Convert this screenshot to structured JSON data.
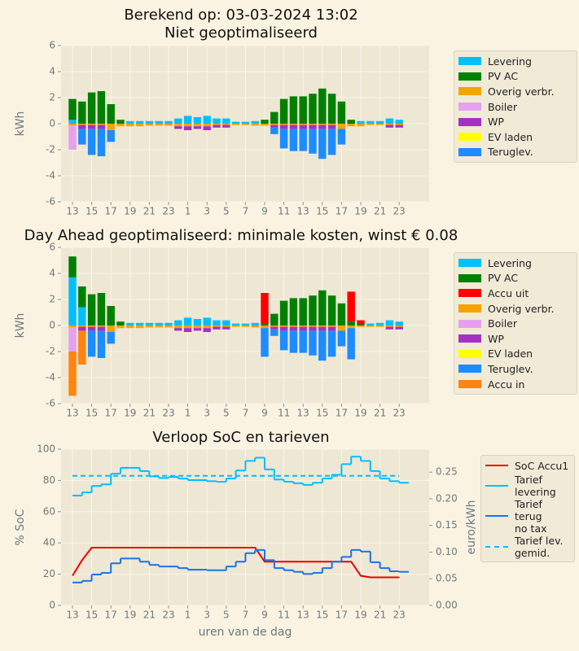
{
  "chart_data": [
    {
      "type": "bar",
      "stacked": true,
      "title": "Berekend op: 03-03-2024 13:02\nNiet geoptimaliseerd",
      "ylabel": "kWh",
      "categories": [
        "13",
        null,
        "15",
        null,
        "17",
        null,
        "19",
        null,
        "21",
        null,
        "23",
        null,
        "1",
        null,
        "3",
        null,
        "5",
        null,
        "7",
        null,
        "9",
        null,
        "11",
        null,
        "13",
        null,
        "15",
        null,
        "17",
        null,
        "19",
        null,
        "21",
        null,
        "23"
      ],
      "series": [
        {
          "name": "Levering",
          "color": "#00bfff",
          "values": [
            0.3,
            0,
            0,
            0,
            0,
            0,
            0.2,
            0.2,
            0.2,
            0.2,
            0.2,
            0.4,
            0.6,
            0.5,
            0.6,
            0.4,
            0.4,
            0.15,
            0.15,
            0.2,
            0,
            0,
            0,
            0,
            0,
            0,
            0,
            0,
            0,
            0,
            0.2,
            0.2,
            0.2,
            0.4,
            0.3
          ]
        },
        {
          "name": "PV AC",
          "color": "#008000",
          "values": [
            1.6,
            1.7,
            2.4,
            2.5,
            1.5,
            0.3,
            0,
            0,
            0,
            0,
            0,
            0,
            0,
            0,
            0,
            0,
            0,
            0,
            0,
            0,
            0.3,
            0.9,
            1.9,
            2.1,
            2.1,
            2.3,
            2.7,
            2.3,
            1.7,
            0.3,
            0,
            0,
            0,
            0,
            0
          ]
        },
        {
          "name": "Overig verbr.",
          "color": "#f5a300",
          "values": [
            -0.15,
            -0.1,
            -0.1,
            -0.1,
            -0.5,
            -0.2,
            -0.2,
            -0.2,
            -0.15,
            -0.15,
            -0.15,
            -0.2,
            -0.2,
            -0.2,
            -0.2,
            -0.1,
            -0.1,
            -0.1,
            -0.1,
            -0.15,
            -0.15,
            -0.1,
            -0.1,
            -0.1,
            -0.1,
            -0.1,
            -0.1,
            -0.1,
            -0.4,
            -0.2,
            -0.2,
            -0.1,
            -0.1,
            -0.1,
            -0.1
          ]
        },
        {
          "name": "Boiler",
          "color": "#e6a1ee",
          "values": [
            -1.85,
            0,
            0,
            0,
            0,
            0,
            0,
            0,
            0,
            0,
            0,
            0,
            0,
            0,
            0,
            0,
            0,
            0,
            0,
            0,
            0,
            0,
            0,
            0,
            0,
            0,
            0,
            0,
            0,
            0,
            0,
            0,
            0,
            0,
            0
          ]
        },
        {
          "name": "WP",
          "color": "#a431c4",
          "values": [
            0,
            -0.3,
            -0.3,
            -0.3,
            0,
            0,
            0,
            0,
            0,
            0,
            0,
            -0.2,
            -0.3,
            -0.2,
            -0.3,
            -0.2,
            -0.2,
            0,
            0,
            0,
            0,
            -0.2,
            -0.3,
            -0.3,
            -0.3,
            -0.3,
            -0.3,
            -0.3,
            0,
            0,
            0,
            0,
            0,
            -0.2,
            -0.2
          ]
        },
        {
          "name": "EV laden",
          "color": "#ffff00",
          "values": [
            0,
            0,
            0,
            0,
            0,
            0,
            0,
            0,
            0,
            0,
            0,
            0,
            0,
            0,
            0,
            0,
            0,
            0,
            0,
            0,
            0,
            0,
            0,
            0,
            0,
            0,
            0,
            0,
            0,
            0,
            0,
            0,
            0,
            0,
            0
          ]
        },
        {
          "name": "Teruglev.",
          "color": "#1e8cff",
          "values": [
            0,
            -1.2,
            -2.0,
            -2.1,
            -0.9,
            0,
            0,
            0,
            0,
            0,
            0,
            0,
            0,
            0,
            0,
            0,
            0,
            0,
            0,
            0,
            0,
            -0.5,
            -1.5,
            -1.7,
            -1.7,
            -1.9,
            -2.3,
            -2.0,
            -1.2,
            0,
            0,
            0,
            0,
            0,
            0
          ]
        }
      ],
      "ylim": [
        -6,
        6
      ],
      "yticks": [
        -6,
        -4,
        -2,
        0,
        2,
        4,
        6
      ],
      "grid": true,
      "legend": "right"
    },
    {
      "type": "bar",
      "stacked": true,
      "title": "Day Ahead geoptimaliseerd: minimale kosten, winst € 0.08",
      "ylabel": "kWh",
      "categories": [
        "13",
        null,
        "15",
        null,
        "17",
        null,
        "19",
        null,
        "21",
        null,
        "23",
        null,
        "1",
        null,
        "3",
        null,
        "5",
        null,
        "7",
        null,
        "9",
        null,
        "11",
        null,
        "13",
        null,
        "15",
        null,
        "17",
        null,
        "19",
        null,
        "21",
        null,
        "23"
      ],
      "series": [
        {
          "name": "Levering",
          "color": "#00bfff",
          "values": [
            3.7,
            1.4,
            0,
            0,
            0,
            0,
            0.2,
            0.2,
            0.2,
            0.2,
            0.2,
            0.4,
            0.6,
            0.5,
            0.6,
            0.4,
            0.4,
            0.15,
            0.15,
            0.2,
            0,
            0,
            0,
            0,
            0,
            0,
            0,
            0,
            0,
            0,
            0,
            0.15,
            0.2,
            0.4,
            0.3
          ]
        },
        {
          "name": "PV AC",
          "color": "#008000",
          "values": [
            1.6,
            1.6,
            2.4,
            2.5,
            1.5,
            0.3,
            0,
            0,
            0,
            0,
            0,
            0,
            0,
            0,
            0,
            0,
            0,
            0,
            0,
            0,
            0.1,
            0.9,
            1.9,
            2.1,
            2.1,
            2.3,
            2.7,
            2.3,
            1.7,
            0.3,
            0.1,
            0,
            0,
            0,
            0
          ]
        },
        {
          "name": "Accu uit",
          "color": "#ff0000",
          "values": [
            0,
            0,
            0,
            0,
            0,
            0,
            0,
            0,
            0,
            0,
            0,
            0,
            0,
            0,
            0,
            0,
            0,
            0,
            0,
            0,
            2.4,
            0,
            0,
            0,
            0,
            0,
            0,
            0,
            0,
            2.3,
            0.3,
            0,
            0,
            0,
            0
          ]
        },
        {
          "name": "Overig verbr.",
          "color": "#f5a300",
          "values": [
            -0.15,
            -0.1,
            -0.1,
            -0.1,
            -0.5,
            -0.2,
            -0.2,
            -0.2,
            -0.15,
            -0.15,
            -0.15,
            -0.2,
            -0.2,
            -0.2,
            -0.2,
            -0.1,
            -0.1,
            -0.1,
            -0.1,
            -0.15,
            -0.2,
            -0.1,
            -0.1,
            -0.1,
            -0.1,
            -0.1,
            -0.1,
            -0.1,
            -0.4,
            -0.2,
            -0.1,
            -0.1,
            -0.1,
            -0.1,
            -0.1
          ]
        },
        {
          "name": "Boiler",
          "color": "#e6a1ee",
          "values": [
            -1.85,
            0,
            0,
            0,
            0,
            0,
            0,
            0,
            0,
            0,
            0,
            0,
            0,
            0,
            0,
            0,
            0,
            0,
            0,
            0,
            0,
            0,
            0,
            0,
            0,
            0,
            0,
            0,
            0,
            0,
            0,
            0,
            0,
            0,
            0
          ]
        },
        {
          "name": "WP",
          "color": "#a431c4",
          "values": [
            0,
            -0.3,
            -0.3,
            -0.3,
            0,
            0,
            0,
            0,
            0,
            0,
            0,
            -0.2,
            -0.3,
            -0.2,
            -0.3,
            -0.2,
            -0.2,
            0,
            0,
            0,
            0,
            -0.2,
            -0.3,
            -0.3,
            -0.3,
            -0.3,
            -0.3,
            -0.3,
            0,
            0,
            0,
            0,
            0,
            -0.2,
            -0.2
          ]
        },
        {
          "name": "EV laden",
          "color": "#ffff00",
          "values": [
            0,
            0,
            0,
            0,
            0,
            0,
            0,
            0,
            0,
            0,
            0,
            0,
            0,
            0,
            0,
            0,
            0,
            0,
            0,
            0,
            0,
            0,
            0,
            0,
            0,
            0,
            0,
            0,
            0,
            0,
            0,
            0,
            0,
            0,
            0
          ]
        },
        {
          "name": "Teruglev.",
          "color": "#1e8cff",
          "values": [
            0,
            0,
            -2.0,
            -2.1,
            -0.9,
            0,
            0,
            0,
            0,
            0,
            0,
            0,
            0,
            0,
            0,
            0,
            0,
            0,
            0,
            0,
            -2.2,
            -0.5,
            -1.5,
            -1.7,
            -1.7,
            -1.9,
            -2.3,
            -2.0,
            -1.2,
            -2.4,
            0,
            0,
            0,
            0,
            0
          ]
        },
        {
          "name": "Accu in",
          "color": "#ff8410",
          "values": [
            -3.4,
            -2.6,
            0,
            0,
            0,
            0,
            0,
            0,
            0,
            0,
            0,
            0,
            0,
            0,
            0,
            0,
            0,
            0,
            0,
            0,
            0,
            0,
            0,
            0,
            0,
            0,
            0,
            0,
            0,
            0,
            0,
            0,
            0,
            0,
            0
          ]
        }
      ],
      "ylim": [
        -6,
        6
      ],
      "yticks": [
        -6,
        -4,
        -2,
        0,
        2,
        4,
        6
      ],
      "grid": true,
      "legend": "right"
    },
    {
      "type": "line",
      "title": "Verloop SoC en tarieven",
      "xlabel": "uren van de dag",
      "ylabel": "% SoC",
      "y2label": "euro/kWh",
      "categories": [
        "13",
        null,
        "15",
        null,
        "17",
        null,
        "19",
        null,
        "21",
        null,
        "23",
        null,
        "1",
        null,
        "3",
        null,
        "5",
        null,
        "7",
        null,
        "9",
        null,
        "11",
        null,
        "13",
        null,
        "15",
        null,
        "17",
        null,
        "19",
        null,
        "21",
        null,
        "23"
      ],
      "series": [
        {
          "name": "SoC Accu1",
          "color": "#ee0000",
          "values": [
            19,
            29,
            37,
            37,
            37,
            37,
            37,
            37,
            37,
            37,
            37,
            37,
            37,
            37,
            37,
            37,
            37,
            37,
            37,
            37,
            28,
            28,
            28,
            28,
            28,
            28,
            28,
            28,
            28,
            28,
            19,
            18,
            18,
            18,
            18
          ]
        },
        {
          "name": "Tarief\nlevering",
          "color": "#00bfff",
          "axis": "y2",
          "step": true,
          "values": [
            0.206,
            0.212,
            0.224,
            0.227,
            0.247,
            0.258,
            0.258,
            0.252,
            0.242,
            0.239,
            0.241,
            0.238,
            0.235,
            0.235,
            0.233,
            0.232,
            0.238,
            0.253,
            0.271,
            0.277,
            0.255,
            0.236,
            0.232,
            0.229,
            0.226,
            0.23,
            0.238,
            0.245,
            0.265,
            0.279,
            0.271,
            0.252,
            0.238,
            0.233,
            0.23
          ]
        },
        {
          "name": "Tarief terug\nno tax",
          "color": "#1a73e8",
          "axis": "y2",
          "step": true,
          "values": [
            0.043,
            0.046,
            0.058,
            0.061,
            0.079,
            0.088,
            0.088,
            0.082,
            0.076,
            0.073,
            0.073,
            0.07,
            0.067,
            0.067,
            0.066,
            0.066,
            0.073,
            0.082,
            0.098,
            0.104,
            0.085,
            0.07,
            0.066,
            0.063,
            0.059,
            0.061,
            0.07,
            0.082,
            0.091,
            0.104,
            0.101,
            0.081,
            0.07,
            0.064,
            0.063
          ]
        },
        {
          "name": "Tarief lev.\ngemid.",
          "color": "#00bfff",
          "axis": "y2",
          "dashed": true,
          "values": [
            0.243,
            0.243,
            0.243,
            0.243,
            0.243,
            0.243,
            0.243,
            0.243,
            0.243,
            0.243,
            0.243,
            0.243,
            0.243,
            0.243,
            0.243,
            0.243,
            0.243,
            0.243,
            0.243,
            0.243,
            0.243,
            0.243,
            0.243,
            0.243,
            0.243,
            0.243,
            0.243,
            0.243,
            0.243,
            0.243,
            0.243,
            0.243,
            0.243,
            0.243,
            0.243
          ]
        }
      ],
      "ylim": [
        0,
        100
      ],
      "yticks": [
        0,
        20,
        40,
        60,
        80,
        100
      ],
      "y2lim": [
        0,
        0.293
      ],
      "y2ticks": [
        {
          "value": 0,
          "label": "0.00"
        },
        {
          "value": 0.05,
          "label": "0.05"
        },
        {
          "value": 0.1,
          "label": "0.10"
        },
        {
          "value": 0.15,
          "label": "0.15"
        },
        {
          "value": 0.2,
          "label": "0.20"
        },
        {
          "value": 0.25,
          "label": "0.25"
        }
      ],
      "grid": true,
      "legend": "right"
    }
  ]
}
